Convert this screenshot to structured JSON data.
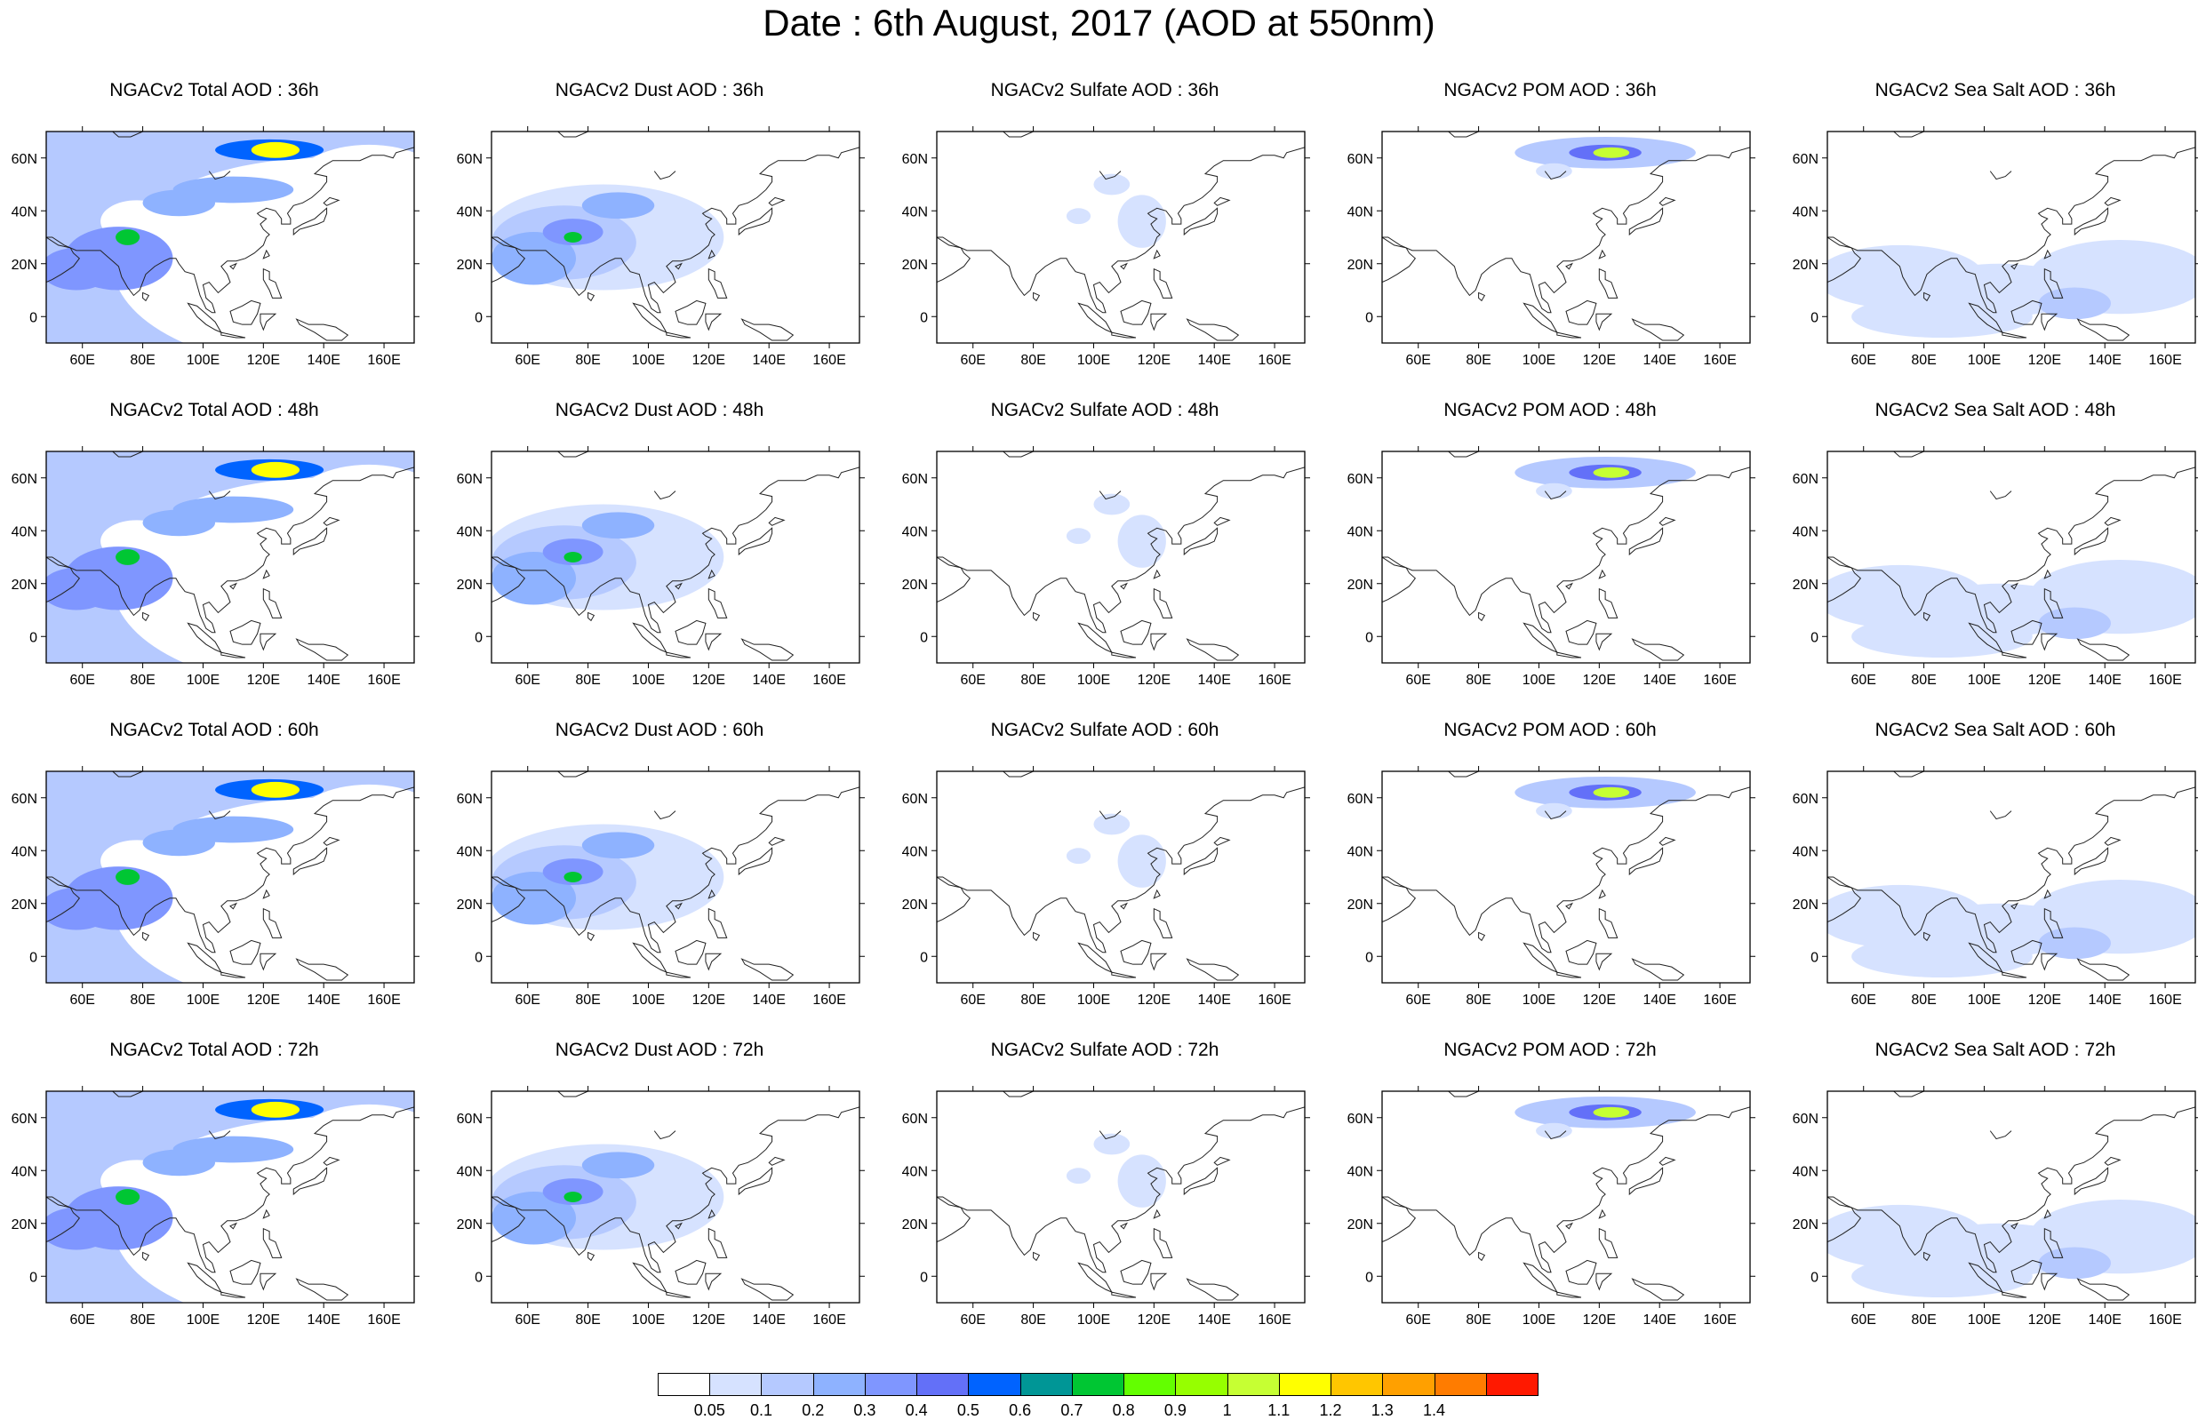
{
  "title": "Date : 6th August, 2017 (AOD at 550nm)",
  "x_ticks": [
    "60E",
    "80E",
    "100E",
    "120E",
    "140E",
    "160E"
  ],
  "y_ticks": [
    "60N",
    "40N",
    "20N",
    "0"
  ],
  "panels": [
    {
      "row": 0,
      "col": 0,
      "title": "NGACv2 Total AOD : 36h",
      "species": "total"
    },
    {
      "row": 0,
      "col": 1,
      "title": "NGACv2 Dust AOD : 36h",
      "species": "dust"
    },
    {
      "row": 0,
      "col": 2,
      "title": "NGACv2 Sulfate AOD : 36h",
      "species": "sulfate"
    },
    {
      "row": 0,
      "col": 3,
      "title": "NGACv2 POM AOD : 36h",
      "species": "pom"
    },
    {
      "row": 0,
      "col": 4,
      "title": "NGACv2 Sea Salt AOD : 36h",
      "species": "seasalt"
    },
    {
      "row": 1,
      "col": 0,
      "title": "NGACv2 Total AOD : 48h",
      "species": "total"
    },
    {
      "row": 1,
      "col": 1,
      "title": "NGACv2 Dust AOD : 48h",
      "species": "dust"
    },
    {
      "row": 1,
      "col": 2,
      "title": "NGACv2 Sulfate AOD : 48h",
      "species": "sulfate"
    },
    {
      "row": 1,
      "col": 3,
      "title": "NGACv2 POM AOD : 48h",
      "species": "pom"
    },
    {
      "row": 1,
      "col": 4,
      "title": "NGACv2 Sea Salt AOD : 48h",
      "species": "seasalt"
    },
    {
      "row": 2,
      "col": 0,
      "title": "NGACv2 Total AOD : 60h",
      "species": "total"
    },
    {
      "row": 2,
      "col": 1,
      "title": "NGACv2 Dust AOD : 60h",
      "species": "dust"
    },
    {
      "row": 2,
      "col": 2,
      "title": "NGACv2 Sulfate AOD : 60h",
      "species": "sulfate"
    },
    {
      "row": 2,
      "col": 3,
      "title": "NGACv2 POM AOD : 60h",
      "species": "pom"
    },
    {
      "row": 2,
      "col": 4,
      "title": "NGACv2 Sea Salt AOD : 60h",
      "species": "seasalt"
    },
    {
      "row": 3,
      "col": 0,
      "title": "NGACv2 Total AOD : 72h",
      "species": "total"
    },
    {
      "row": 3,
      "col": 1,
      "title": "NGACv2 Dust AOD : 72h",
      "species": "dust"
    },
    {
      "row": 3,
      "col": 2,
      "title": "NGACv2 Sulfate AOD : 72h",
      "species": "sulfate"
    },
    {
      "row": 3,
      "col": 3,
      "title": "NGACv2 POM AOD : 72h",
      "species": "pom"
    },
    {
      "row": 3,
      "col": 4,
      "title": "NGACv2 Sea Salt  AOD : 72h",
      "species": "seasalt"
    }
  ],
  "colorbar": {
    "colors": [
      "#ffffff",
      "#d6e2ff",
      "#b5c9ff",
      "#8eb2ff",
      "#7f96ff",
      "#6370f8",
      "#0063ff",
      "#009696",
      "#00c633",
      "#63ff00",
      "#96ff00",
      "#c6ff33",
      "#ffff00",
      "#ffc600",
      "#ffa000",
      "#ff7c00",
      "#ff1900"
    ],
    "labels": [
      "0.05",
      "0.1",
      "0.2",
      "0.3",
      "0.4",
      "0.5",
      "0.6",
      "0.7",
      "0.8",
      "0.9",
      "1",
      "1.1",
      "1.2",
      "1.3",
      "1.4"
    ]
  }
}
